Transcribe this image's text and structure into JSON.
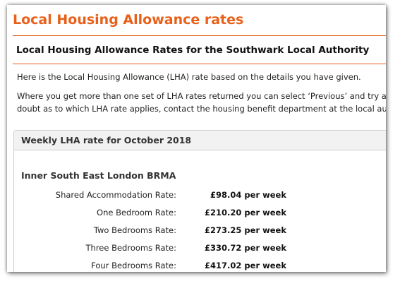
{
  "page": {
    "title": "Local Housing Allowance rates",
    "subtitle": "Local Housing Allowance Rates for the Southwark Local Authority",
    "intro": "Here is the Local Housing Allowance (LHA) rate based on the details you have given.",
    "note_line1": "Where you get more than one set of LHA rates returned you can select ‘Previous’ and try a full pos",
    "note_line2": "doubt as to which LHA rate applies, contact the housing benefit department at the local authority."
  },
  "panel": {
    "title": "Weekly LHA rate for October 2018",
    "brma": "Inner South East London BRMA",
    "rates": [
      {
        "label": "Shared Accommodation Rate:",
        "value": "£98.04 per week"
      },
      {
        "label": "One Bedroom Rate:",
        "value": "£210.20 per week"
      },
      {
        "label": "Two Bedrooms Rate:",
        "value": "£273.25 per week"
      },
      {
        "label": "Three Bedrooms Rate:",
        "value": "£330.72 per week"
      },
      {
        "label": "Four Bedrooms Rate:",
        "value": "£417.02 per week"
      }
    ]
  },
  "colors": {
    "accent": "#e8601a",
    "panel_header_bg": "#f2f2f2",
    "panel_border": "#cfcfcf"
  }
}
